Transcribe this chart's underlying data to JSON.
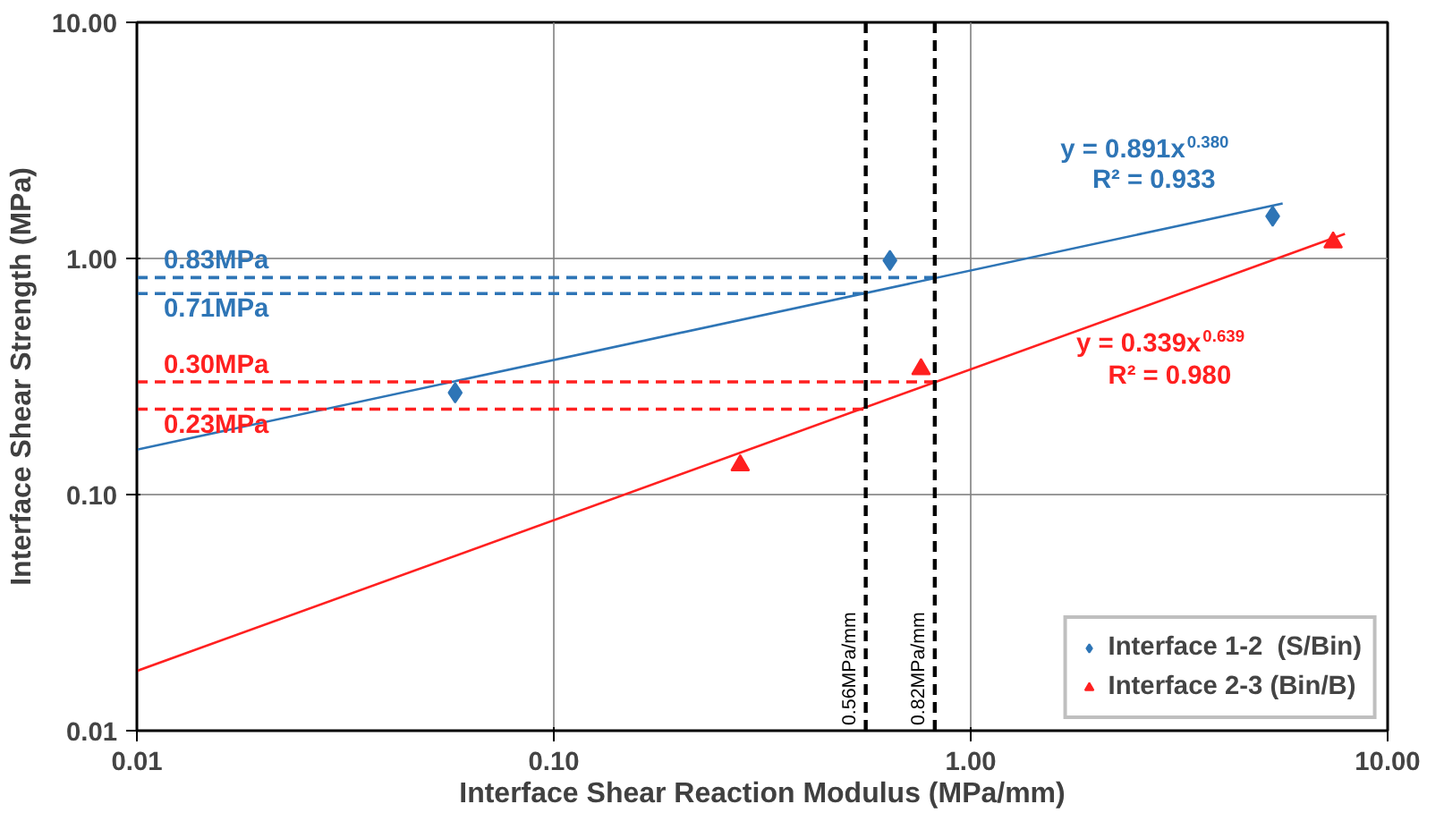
{
  "chart_data": {
    "type": "scatter",
    "xlabel": "Interface Shear Reaction Modulus (MPa/mm)",
    "ylabel": "Interface Shear Strength (MPa)",
    "log": "xy",
    "grid": true,
    "legend": "bottom right",
    "xlim": [
      0.01,
      10
    ],
    "ylim": [
      0.01,
      10
    ],
    "xticks": [
      {
        "value": 0.01,
        "label": "0.01"
      },
      {
        "value": 0.1,
        "label": "0.10"
      },
      {
        "value": 1,
        "label": "1.00"
      },
      {
        "value": 10,
        "label": "10.00"
      }
    ],
    "yticks": [
      {
        "value": 0.01,
        "label": "0.01"
      },
      {
        "value": 0.1,
        "label": "0.10"
      },
      {
        "value": 1,
        "label": "1.00"
      },
      {
        "value": 10,
        "label": "10.00"
      }
    ],
    "series": [
      {
        "name": "Interface 1-2  (S/Bin)",
        "marker": "diamond",
        "color": "#2e75b6",
        "x": [
          0.058,
          0.64,
          5.3
        ],
        "values": [
          0.27,
          0.98,
          1.51
        ]
      },
      {
        "name": "Interface 2-3 (Bin/B)",
        "marker": "triangle",
        "color": "#ff2020",
        "x": [
          0.28,
          0.76,
          7.4
        ],
        "values": [
          0.133,
          0.34,
          1.17
        ]
      },
      {
        "type": "line",
        "line_style": "solid",
        "color": "#2e75b6",
        "x": [
          0.01,
          5.6
        ],
        "values": [
          0.155,
          1.71
        ]
      },
      {
        "type": "line",
        "line_style": "solid",
        "color": "#ff2020",
        "x": [
          0.01,
          7.9
        ],
        "values": [
          0.0179,
          1.27
        ]
      },
      {
        "type": "line",
        "line_style": "dashed",
        "color": "#2e75b6",
        "x": [
          0.01,
          0.82
        ],
        "values": [
          0.83,
          0.83
        ]
      },
      {
        "type": "line",
        "line_style": "dashed",
        "color": "#2e75b6",
        "x": [
          0.01,
          0.56
        ],
        "values": [
          0.71,
          0.71
        ]
      },
      {
        "type": "line",
        "line_style": "dashed",
        "color": "#ff2020",
        "x": [
          0.01,
          0.82
        ],
        "values": [
          0.3,
          0.3
        ]
      },
      {
        "type": "line",
        "line_style": "dashed",
        "color": "#ff2020",
        "x": [
          0.01,
          0.56
        ],
        "values": [
          0.23,
          0.23
        ]
      }
    ],
    "ref_lines": [
      {
        "axis": "x",
        "value": 0.56,
        "label": "0.56MPa/mm",
        "color": "#000000",
        "line_style": "dashed"
      },
      {
        "axis": "x",
        "value": 0.82,
        "label": "0.82MPa/mm",
        "color": "#000000",
        "line_style": "dashed"
      }
    ],
    "annotations": [
      {
        "text": "0.83MPa",
        "x": 0.0155,
        "y": 0.83
      },
      {
        "text": "0.71MPa",
        "x": 0.0155,
        "y": 0.71
      },
      {
        "text": "0.30MPa",
        "x": 0.0155,
        "y": 0.3
      },
      {
        "text": "0.23MPa",
        "x": 0.0155,
        "y": 0.23
      },
      {
        "text": "y = 0.891x$^{0.380}$",
        "x": 2.75,
        "y": 1.31
      },
      {
        "text": "R² = 0.933",
        "x": 2.75,
        "y": 1.31
      },
      {
        "text": "y = 0.339x$^{0.639}$",
        "x": 3.0,
        "y": 0.684
      },
      {
        "text": "R² = 0.980",
        "x": 3.0,
        "y": 0.684
      }
    ]
  }
}
